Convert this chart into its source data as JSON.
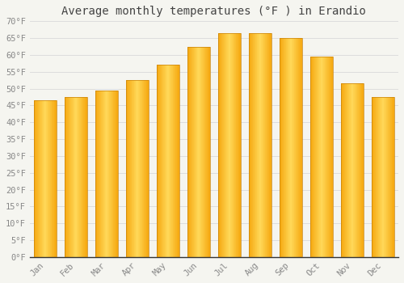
{
  "title": "Average monthly temperatures (°F ) in Erandio",
  "months": [
    "Jan",
    "Feb",
    "Mar",
    "Apr",
    "May",
    "Jun",
    "Jul",
    "Aug",
    "Sep",
    "Oct",
    "Nov",
    "Dec"
  ],
  "values": [
    46.5,
    47.5,
    49.5,
    52.5,
    57.0,
    62.5,
    66.5,
    66.5,
    65.0,
    59.5,
    51.5,
    47.5
  ],
  "bar_color_center": "#FFD060",
  "bar_color_edge": "#F5A800",
  "background_color": "#f5f5f0",
  "plot_bg_color": "#f5f5f0",
  "grid_color": "#dddddd",
  "text_color": "#888888",
  "title_color": "#444444",
  "spine_color": "#333333",
  "ylim": [
    0,
    70
  ],
  "yticks": [
    0,
    5,
    10,
    15,
    20,
    25,
    30,
    35,
    40,
    45,
    50,
    55,
    60,
    65,
    70
  ],
  "title_fontsize": 10,
  "tick_fontsize": 7.5,
  "bar_width": 0.75
}
